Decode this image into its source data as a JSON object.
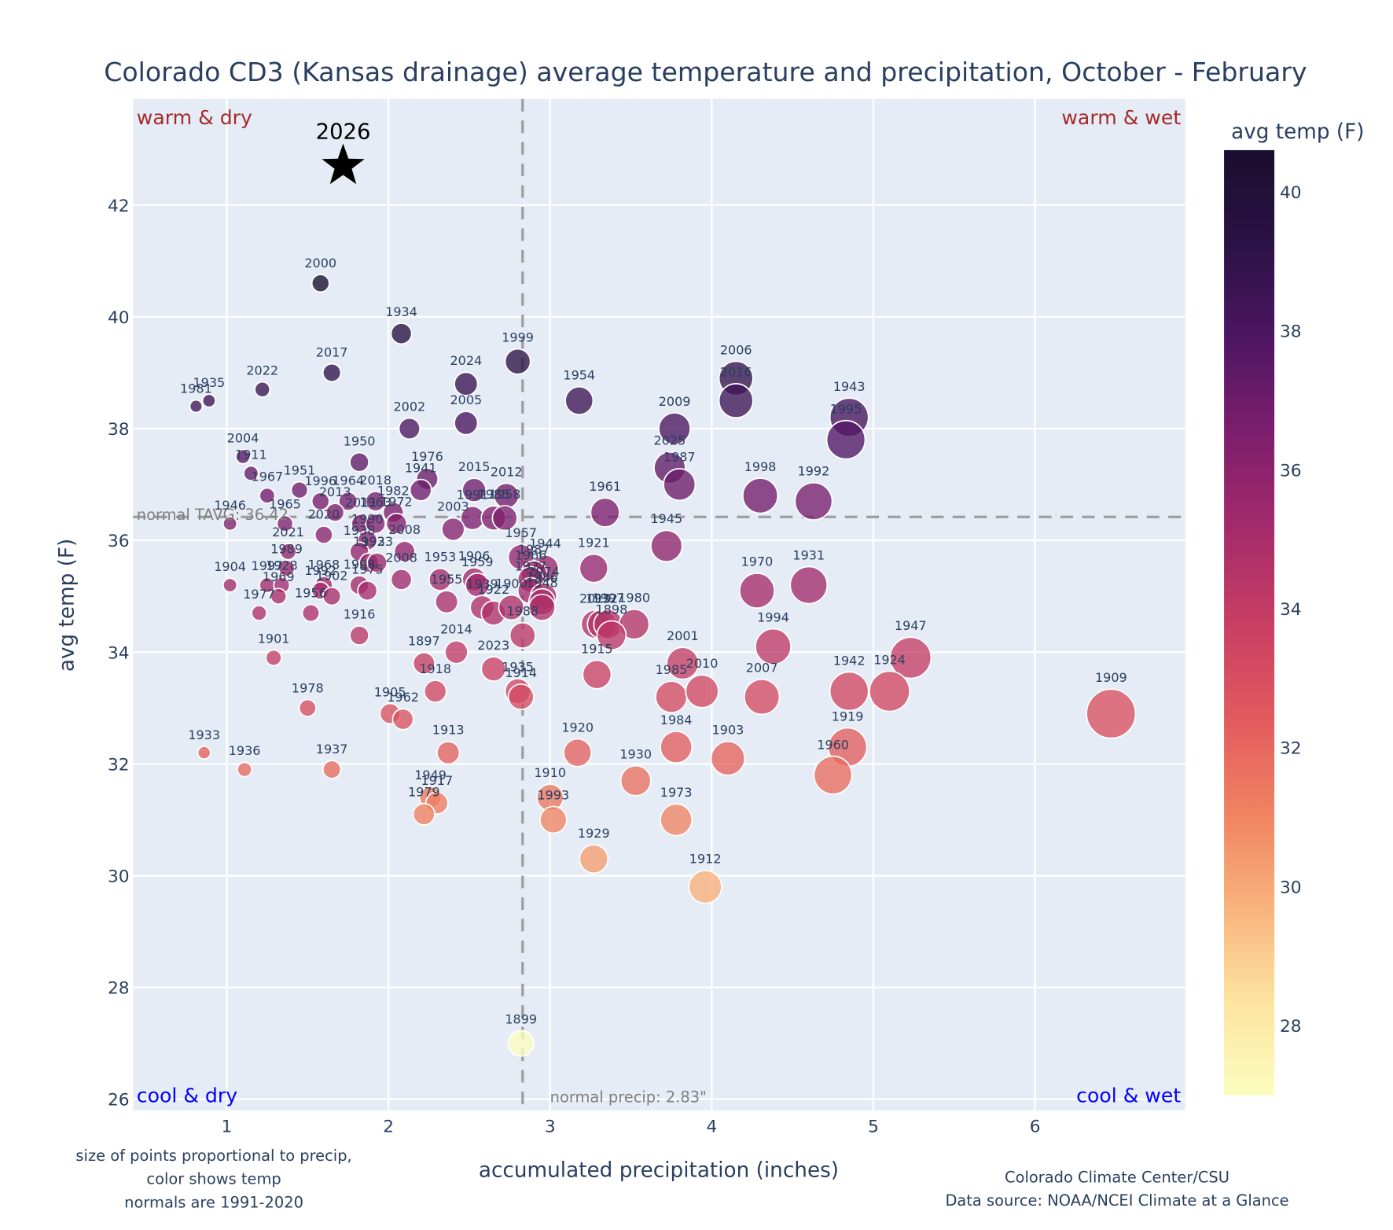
{
  "chart_data": {
    "type": "scatter",
    "title": "Colorado CD3 (Kansas drainage) average temperature and precipitation, October - February",
    "xlabel": "accumulated precipitation (inches)",
    "ylabel": "avg temp (F)",
    "xlim": [
      0.42,
      6.93
    ],
    "ylim": [
      25.8,
      43.9
    ],
    "xticks": [
      1,
      2,
      3,
      4,
      5,
      6
    ],
    "yticks": [
      26,
      28,
      30,
      32,
      34,
      36,
      38,
      40,
      42
    ],
    "grid": true,
    "colorbar": {
      "title": "avg temp (F)",
      "range": [
        27.0,
        40.6
      ],
      "ticks": [
        28,
        30,
        32,
        34,
        36,
        38,
        40
      ],
      "colorscale": [
        "#fcfdbf",
        "#fde3a0",
        "#f8b27c",
        "#f08261",
        "#e15a5e",
        "#c83e64",
        "#a42b6b",
        "#7d1e6d",
        "#4e1663",
        "#2b1245",
        "#1a0e2e"
      ]
    },
    "normals": {
      "tavg": 36.42,
      "tavg_label": "normal TAVG: 36.42",
      "precip": 2.83,
      "precip_label": "normal precip: 2.83\""
    },
    "quadrant_labels": {
      "top_left": "warm & dry",
      "top_right": "warm & wet",
      "bottom_left": "cool & dry",
      "bottom_right": "cool & wet"
    },
    "highlight": {
      "label": "2026",
      "x": 1.72,
      "y": 42.7,
      "marker": "star"
    },
    "points": [
      {
        "year": "2000",
        "x": 1.58,
        "y": 40.6
      },
      {
        "year": "1934",
        "x": 2.08,
        "y": 39.7
      },
      {
        "year": "1999",
        "x": 2.8,
        "y": 39.2
      },
      {
        "year": "2017",
        "x": 1.65,
        "y": 39.0
      },
      {
        "year": "2024",
        "x": 2.48,
        "y": 38.8
      },
      {
        "year": "2022",
        "x": 1.22,
        "y": 38.7
      },
      {
        "year": "1954",
        "x": 3.18,
        "y": 38.5
      },
      {
        "year": "1935",
        "x": 0.89,
        "y": 38.5
      },
      {
        "year": "1981",
        "x": 0.81,
        "y": 38.4
      },
      {
        "year": "2006",
        "x": 4.15,
        "y": 38.9
      },
      {
        "year": "2016",
        "x": 4.15,
        "y": 38.5
      },
      {
        "year": "2005",
        "x": 2.48,
        "y": 38.1
      },
      {
        "year": "2002",
        "x": 2.13,
        "y": 38.0
      },
      {
        "year": "2009",
        "x": 3.77,
        "y": 38.0
      },
      {
        "year": "1943",
        "x": 4.85,
        "y": 38.2
      },
      {
        "year": "1995",
        "x": 4.83,
        "y": 37.8
      },
      {
        "year": "2004",
        "x": 1.1,
        "y": 37.5
      },
      {
        "year": "1950",
        "x": 1.82,
        "y": 37.4
      },
      {
        "year": "2025",
        "x": 3.74,
        "y": 37.3
      },
      {
        "year": "1911",
        "x": 1.15,
        "y": 37.2
      },
      {
        "year": "1987",
        "x": 3.8,
        "y": 37.0
      },
      {
        "year": "1976",
        "x": 2.24,
        "y": 37.1
      },
      {
        "year": "1941",
        "x": 2.2,
        "y": 36.9
      },
      {
        "year": "1951",
        "x": 1.45,
        "y": 36.9
      },
      {
        "year": "1967",
        "x": 1.25,
        "y": 36.8
      },
      {
        "year": "1998",
        "x": 4.3,
        "y": 36.8
      },
      {
        "year": "1992",
        "x": 4.63,
        "y": 36.7
      },
      {
        "year": "2015",
        "x": 2.53,
        "y": 36.9
      },
      {
        "year": "2012",
        "x": 2.73,
        "y": 36.8
      },
      {
        "year": "1996",
        "x": 1.58,
        "y": 36.7
      },
      {
        "year": "1964",
        "x": 1.75,
        "y": 36.7
      },
      {
        "year": "2018",
        "x": 1.92,
        "y": 36.7
      },
      {
        "year": "1991",
        "x": 2.52,
        "y": 36.4
      },
      {
        "year": "1985",
        "x": 2.65,
        "y": 36.4
      },
      {
        "year": "1958",
        "x": 2.72,
        "y": 36.4
      },
      {
        "year": "2013",
        "x": 1.67,
        "y": 36.5
      },
      {
        "year": "1961",
        "x": 3.34,
        "y": 36.5
      },
      {
        "year": "1982",
        "x": 2.03,
        "y": 36.5
      },
      {
        "year": "2011",
        "x": 1.83,
        "y": 36.3
      },
      {
        "year": "1963",
        "x": 1.92,
        "y": 36.3
      },
      {
        "year": "2020",
        "x": 1.6,
        "y": 36.1
      },
      {
        "year": "1965",
        "x": 1.36,
        "y": 36.3
      },
      {
        "year": "1946",
        "x": 1.02,
        "y": 36.3
      },
      {
        "year": "2003",
        "x": 2.4,
        "y": 36.2
      },
      {
        "year": "1972",
        "x": 2.05,
        "y": 36.3
      },
      {
        "year": "1990",
        "x": 1.87,
        "y": 36.0
      },
      {
        "year": "1945",
        "x": 3.72,
        "y": 35.9
      },
      {
        "year": "1938",
        "x": 1.82,
        "y": 35.8
      },
      {
        "year": "2021",
        "x": 1.38,
        "y": 35.8
      },
      {
        "year": "1957",
        "x": 2.82,
        "y": 35.7
      },
      {
        "year": "1993",
        "x": 1.88,
        "y": 35.6
      },
      {
        "year": "1923",
        "x": 1.93,
        "y": 35.6
      },
      {
        "year": "2008",
        "x": 2.1,
        "y": 35.8
      },
      {
        "year": "1921",
        "x": 3.27,
        "y": 35.5
      },
      {
        "year": "1944",
        "x": 2.97,
        "y": 35.5
      },
      {
        "year": "1987b",
        "x": 2.9,
        "y": 35.4
      },
      {
        "year": "1966",
        "x": 2.88,
        "y": 35.3
      },
      {
        "year": "1989",
        "x": 1.37,
        "y": 35.5
      },
      {
        "year": "1953",
        "x": 2.32,
        "y": 35.3
      },
      {
        "year": "1906",
        "x": 2.53,
        "y": 35.3
      },
      {
        "year": "1959",
        "x": 2.55,
        "y": 35.2
      },
      {
        "year": "1904",
        "x": 1.02,
        "y": 35.2
      },
      {
        "year": "1997",
        "x": 1.25,
        "y": 35.2
      },
      {
        "year": "1928",
        "x": 1.34,
        "y": 35.2
      },
      {
        "year": "1968",
        "x": 1.6,
        "y": 35.2
      },
      {
        "year": "1908",
        "x": 1.82,
        "y": 35.2
      },
      {
        "year": "1992b",
        "x": 1.58,
        "y": 35.1
      },
      {
        "year": "1902",
        "x": 1.65,
        "y": 35.0
      },
      {
        "year": "1975",
        "x": 1.87,
        "y": 35.1
      },
      {
        "year": "2008b",
        "x": 2.08,
        "y": 35.3
      },
      {
        "year": "1970",
        "x": 4.28,
        "y": 35.1
      },
      {
        "year": "1931",
        "x": 4.6,
        "y": 35.2
      },
      {
        "year": "1927",
        "x": 2.88,
        "y": 35.1
      },
      {
        "year": "1974",
        "x": 2.96,
        "y": 35.0
      },
      {
        "year": "1986",
        "x": 2.95,
        "y": 34.9
      },
      {
        "year": "1969",
        "x": 1.32,
        "y": 35.0
      },
      {
        "year": "1955",
        "x": 2.36,
        "y": 34.9
      },
      {
        "year": "1939",
        "x": 2.58,
        "y": 34.8
      },
      {
        "year": "1922",
        "x": 2.65,
        "y": 34.7
      },
      {
        "year": "1900",
        "x": 2.76,
        "y": 34.8
      },
      {
        "year": "1948",
        "x": 2.95,
        "y": 34.8
      },
      {
        "year": "1977",
        "x": 1.2,
        "y": 34.7
      },
      {
        "year": "1956",
        "x": 1.52,
        "y": 34.7
      },
      {
        "year": "2019",
        "x": 3.28,
        "y": 34.5
      },
      {
        "year": "1932",
        "x": 3.32,
        "y": 34.5
      },
      {
        "year": "1997b",
        "x": 3.36,
        "y": 34.5
      },
      {
        "year": "1980",
        "x": 3.52,
        "y": 34.5
      },
      {
        "year": "1898",
        "x": 3.38,
        "y": 34.3
      },
      {
        "year": "1988",
        "x": 2.83,
        "y": 34.3
      },
      {
        "year": "1994",
        "x": 4.38,
        "y": 34.1
      },
      {
        "year": "1916",
        "x": 1.82,
        "y": 34.3
      },
      {
        "year": "2014",
        "x": 2.42,
        "y": 34.0
      },
      {
        "year": "1947",
        "x": 5.23,
        "y": 33.9
      },
      {
        "year": "1901",
        "x": 1.29,
        "y": 33.9
      },
      {
        "year": "1897",
        "x": 2.22,
        "y": 33.8
      },
      {
        "year": "2001",
        "x": 3.82,
        "y": 33.8
      },
      {
        "year": "2023",
        "x": 2.65,
        "y": 33.7
      },
      {
        "year": "1915",
        "x": 3.29,
        "y": 33.6
      },
      {
        "year": "1918",
        "x": 2.29,
        "y": 33.3
      },
      {
        "year": "1935b",
        "x": 2.8,
        "y": 33.3
      },
      {
        "year": "1914",
        "x": 2.82,
        "y": 33.2
      },
      {
        "year": "1985b",
        "x": 3.75,
        "y": 33.2
      },
      {
        "year": "2010",
        "x": 3.94,
        "y": 33.3
      },
      {
        "year": "2007",
        "x": 4.31,
        "y": 33.2
      },
      {
        "year": "1942",
        "x": 4.85,
        "y": 33.3
      },
      {
        "year": "1924",
        "x": 5.1,
        "y": 33.3
      },
      {
        "year": "1909",
        "x": 6.47,
        "y": 32.9
      },
      {
        "year": "1978",
        "x": 1.5,
        "y": 33.0
      },
      {
        "year": "1905",
        "x": 2.01,
        "y": 32.9
      },
      {
        "year": "1962",
        "x": 2.09,
        "y": 32.8
      },
      {
        "year": "1984",
        "x": 3.78,
        "y": 32.3
      },
      {
        "year": "1919",
        "x": 4.84,
        "y": 32.3
      },
      {
        "year": "1920",
        "x": 3.17,
        "y": 32.2
      },
      {
        "year": "1913",
        "x": 2.37,
        "y": 32.2
      },
      {
        "year": "1903",
        "x": 4.1,
        "y": 32.1
      },
      {
        "year": "1933",
        "x": 0.86,
        "y": 32.2
      },
      {
        "year": "1936",
        "x": 1.11,
        "y": 31.9
      },
      {
        "year": "1937",
        "x": 1.65,
        "y": 31.9
      },
      {
        "year": "1960",
        "x": 4.75,
        "y": 31.8
      },
      {
        "year": "1930",
        "x": 3.53,
        "y": 31.7
      },
      {
        "year": "1949",
        "x": 2.26,
        "y": 31.4
      },
      {
        "year": "1917",
        "x": 2.3,
        "y": 31.3
      },
      {
        "year": "1910",
        "x": 3.0,
        "y": 31.4
      },
      {
        "year": "1979",
        "x": 2.22,
        "y": 31.1
      },
      {
        "year": "1993b",
        "x": 3.02,
        "y": 31.0
      },
      {
        "year": "1973",
        "x": 3.78,
        "y": 31.0
      },
      {
        "year": "1929",
        "x": 3.27,
        "y": 30.3
      },
      {
        "year": "1912",
        "x": 3.96,
        "y": 29.8
      },
      {
        "year": "1899",
        "x": 2.82,
        "y": 27.0
      }
    ]
  },
  "footnotes": {
    "left": [
      "size of points proportional to precip,",
      "color shows temp",
      "normals are 1991-2020"
    ],
    "right": [
      "Colorado Climate Center/CSU",
      "Data source: NOAA/NCEI Climate at a Glance"
    ]
  }
}
